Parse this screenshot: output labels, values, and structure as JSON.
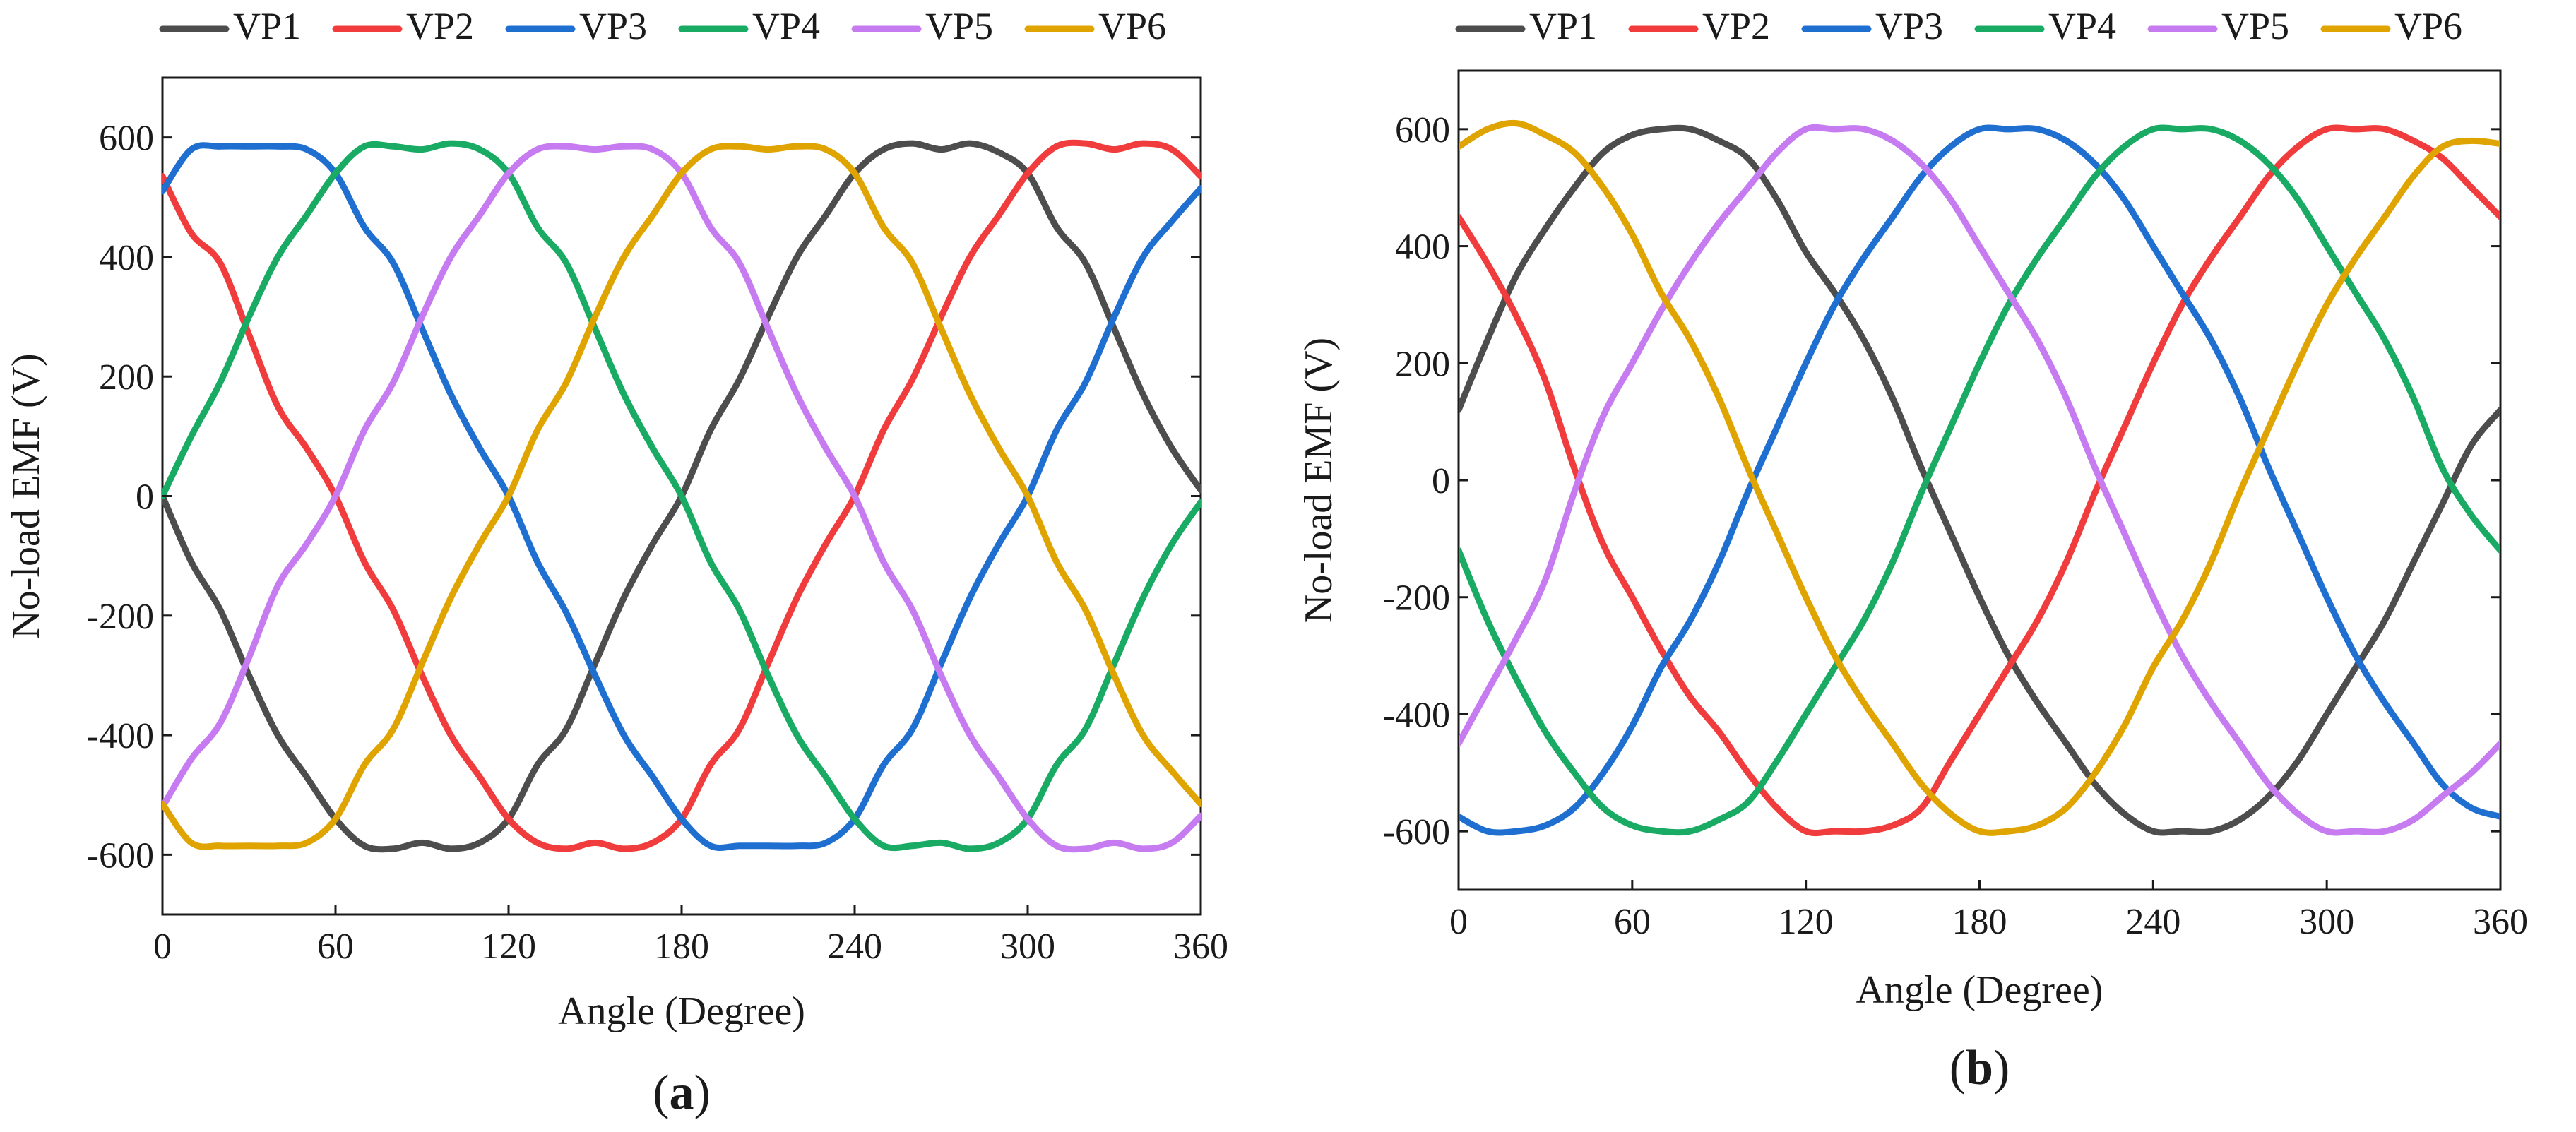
{
  "figure": {
    "label_open": "(",
    "label_close": ")"
  },
  "chart_data": [
    {
      "type": "line",
      "panel_label": "a",
      "xlabel": "Angle (Degree)",
      "ylabel": "No-load EMF (V)",
      "xlim": [
        0,
        360
      ],
      "ylim": [
        -700,
        700
      ],
      "xticks": [
        0,
        60,
        120,
        180,
        240,
        300,
        360
      ],
      "yticks": [
        -600,
        -400,
        -200,
        0,
        200,
        400,
        600
      ],
      "legend": "top",
      "grid": false,
      "series": [
        {
          "name": "VP1",
          "color": "#4d4d4d",
          "x": [
            0,
            10,
            20,
            30,
            40,
            50,
            60,
            70,
            80,
            90,
            100,
            110,
            120,
            130,
            140,
            150,
            160,
            170,
            180,
            190,
            200,
            210,
            220,
            230,
            240,
            250,
            260,
            270,
            280,
            290,
            300,
            310,
            320,
            330,
            340,
            350,
            360
          ],
          "values": [
            0,
            -110,
            -190,
            -300,
            -400,
            -470,
            -540,
            -585,
            -590,
            -580,
            -590,
            -580,
            -540,
            -450,
            -390,
            -280,
            -170,
            -80,
            0,
            110,
            195,
            300,
            400,
            470,
            540,
            580,
            590,
            580,
            590,
            575,
            540,
            450,
            390,
            280,
            170,
            80,
            10
          ]
        },
        {
          "name": "VP2",
          "color": "#f03c3c",
          "x": [
            0,
            10,
            20,
            30,
            40,
            50,
            60,
            70,
            80,
            90,
            100,
            110,
            120,
            130,
            140,
            150,
            160,
            170,
            180,
            190,
            200,
            210,
            220,
            230,
            240,
            250,
            260,
            270,
            280,
            290,
            300,
            310,
            320,
            330,
            340,
            350,
            360
          ],
          "values": [
            535,
            440,
            390,
            270,
            150,
            80,
            0,
            -110,
            -190,
            -300,
            -400,
            -470,
            -540,
            -580,
            -590,
            -580,
            -590,
            -580,
            -540,
            -450,
            -390,
            -280,
            -170,
            -80,
            0,
            110,
            195,
            300,
            400,
            470,
            540,
            585,
            590,
            580,
            590,
            580,
            535
          ]
        },
        {
          "name": "VP3",
          "color": "#1f6fd1",
          "x": [
            0,
            10,
            20,
            30,
            40,
            50,
            60,
            70,
            80,
            90,
            100,
            110,
            120,
            130,
            140,
            150,
            160,
            170,
            180,
            190,
            200,
            210,
            220,
            230,
            240,
            250,
            260,
            270,
            280,
            290,
            300,
            310,
            320,
            330,
            340,
            350,
            360
          ],
          "values": [
            510,
            580,
            585,
            585,
            585,
            580,
            540,
            450,
            390,
            280,
            170,
            80,
            0,
            -110,
            -195,
            -300,
            -400,
            -470,
            -540,
            -585,
            -585,
            -585,
            -585,
            -580,
            -540,
            -450,
            -390,
            -280,
            -170,
            -80,
            0,
            110,
            190,
            300,
            400,
            460,
            515
          ]
        },
        {
          "name": "VP4",
          "color": "#19aa64",
          "x": [
            0,
            10,
            20,
            30,
            40,
            50,
            60,
            70,
            80,
            90,
            100,
            110,
            120,
            130,
            140,
            150,
            160,
            170,
            180,
            190,
            200,
            210,
            220,
            230,
            240,
            250,
            260,
            270,
            280,
            290,
            300,
            310,
            320,
            330,
            340,
            350,
            360
          ],
          "values": [
            0,
            100,
            190,
            300,
            400,
            470,
            540,
            585,
            585,
            580,
            590,
            580,
            540,
            450,
            390,
            280,
            170,
            80,
            0,
            -110,
            -190,
            -300,
            -400,
            -470,
            -540,
            -585,
            -585,
            -580,
            -590,
            -580,
            -540,
            -450,
            -390,
            -280,
            -170,
            -80,
            -10
          ]
        },
        {
          "name": "VP5",
          "color": "#c67cf0",
          "x": [
            0,
            10,
            20,
            30,
            40,
            50,
            60,
            70,
            80,
            90,
            100,
            110,
            120,
            130,
            140,
            150,
            160,
            170,
            180,
            190,
            200,
            210,
            220,
            230,
            240,
            250,
            260,
            270,
            280,
            290,
            300,
            310,
            320,
            330,
            340,
            350,
            360
          ],
          "values": [
            -520,
            -440,
            -380,
            -270,
            -150,
            -80,
            0,
            110,
            190,
            300,
            400,
            470,
            540,
            580,
            585,
            580,
            585,
            580,
            540,
            450,
            390,
            280,
            170,
            80,
            0,
            -110,
            -190,
            -300,
            -400,
            -470,
            -540,
            -585,
            -590,
            -580,
            -590,
            -580,
            -535
          ]
        },
        {
          "name": "VP6",
          "color": "#e0a400",
          "x": [
            0,
            10,
            20,
            30,
            40,
            50,
            60,
            70,
            80,
            90,
            100,
            110,
            120,
            130,
            140,
            150,
            160,
            170,
            180,
            190,
            200,
            210,
            220,
            230,
            240,
            250,
            260,
            270,
            280,
            290,
            300,
            310,
            320,
            330,
            340,
            350,
            360
          ],
          "values": [
            -515,
            -580,
            -585,
            -585,
            -585,
            -580,
            -540,
            -450,
            -390,
            -280,
            -170,
            -80,
            0,
            110,
            190,
            300,
            400,
            470,
            540,
            580,
            585,
            580,
            585,
            580,
            540,
            450,
            390,
            280,
            170,
            80,
            0,
            -110,
            -190,
            -300,
            -400,
            -460,
            -515
          ]
        }
      ]
    },
    {
      "type": "line",
      "panel_label": "b",
      "xlabel": "Angle (Degree)",
      "ylabel": "No-load EMF (V)",
      "xlim": [
        0,
        360
      ],
      "ylim": [
        -700,
        700
      ],
      "xticks": [
        0,
        60,
        120,
        180,
        240,
        300,
        360
      ],
      "yticks": [
        -600,
        -400,
        -200,
        0,
        200,
        400,
        600
      ],
      "legend": "top",
      "grid": false,
      "series": [
        {
          "name": "VP1",
          "color": "#4d4d4d",
          "x": [
            0,
            10,
            20,
            30,
            40,
            50,
            60,
            70,
            80,
            90,
            100,
            110,
            120,
            130,
            140,
            150,
            160,
            170,
            180,
            190,
            200,
            210,
            220,
            230,
            240,
            250,
            260,
            270,
            280,
            290,
            300,
            310,
            320,
            330,
            340,
            350,
            360
          ],
          "values": [
            120,
            240,
            350,
            430,
            500,
            560,
            590,
            600,
            600,
            580,
            550,
            480,
            390,
            320,
            240,
            140,
            20,
            -90,
            -200,
            -300,
            -380,
            -450,
            -520,
            -570,
            -600,
            -600,
            -600,
            -580,
            -540,
            -480,
            -400,
            -320,
            -240,
            -140,
            -40,
            60,
            120
          ]
        },
        {
          "name": "VP2",
          "color": "#f03c3c",
          "x": [
            0,
            10,
            20,
            30,
            40,
            50,
            60,
            70,
            80,
            90,
            100,
            110,
            120,
            130,
            140,
            150,
            160,
            170,
            180,
            190,
            200,
            210,
            220,
            230,
            240,
            250,
            260,
            270,
            280,
            290,
            300,
            310,
            320,
            330,
            340,
            350,
            360
          ],
          "values": [
            450,
            370,
            280,
            170,
            20,
            -110,
            -200,
            -290,
            -370,
            -430,
            -500,
            -560,
            -600,
            -600,
            -600,
            -590,
            -560,
            -480,
            -400,
            -320,
            -240,
            -140,
            -20,
            90,
            200,
            300,
            380,
            450,
            520,
            570,
            600,
            600,
            600,
            580,
            550,
            500,
            450
          ]
        },
        {
          "name": "VP3",
          "color": "#1f6fd1",
          "x": [
            0,
            10,
            20,
            30,
            40,
            50,
            60,
            70,
            80,
            90,
            100,
            110,
            120,
            130,
            140,
            150,
            160,
            170,
            180,
            190,
            200,
            210,
            220,
            230,
            240,
            250,
            260,
            270,
            280,
            290,
            300,
            310,
            320,
            330,
            340,
            350,
            360
          ],
          "values": [
            -575,
            -600,
            -600,
            -590,
            -560,
            -500,
            -420,
            -320,
            -240,
            -140,
            -20,
            90,
            200,
            300,
            380,
            450,
            520,
            570,
            600,
            600,
            600,
            580,
            540,
            480,
            400,
            320,
            240,
            140,
            20,
            -90,
            -200,
            -300,
            -380,
            -450,
            -520,
            -560,
            -575
          ]
        },
        {
          "name": "VP4",
          "color": "#19aa64",
          "x": [
            0,
            10,
            20,
            30,
            40,
            50,
            60,
            70,
            80,
            90,
            100,
            110,
            120,
            130,
            140,
            150,
            160,
            170,
            180,
            190,
            200,
            210,
            220,
            230,
            240,
            250,
            260,
            270,
            280,
            290,
            300,
            310,
            320,
            330,
            340,
            350,
            360
          ],
          "values": [
            -120,
            -240,
            -340,
            -430,
            -500,
            -560,
            -590,
            -600,
            -600,
            -580,
            -550,
            -480,
            -400,
            -320,
            -240,
            -140,
            -20,
            90,
            200,
            300,
            380,
            450,
            520,
            570,
            600,
            600,
            600,
            580,
            540,
            480,
            400,
            320,
            240,
            140,
            20,
            -60,
            -120
          ]
        },
        {
          "name": "VP5",
          "color": "#c67cf0",
          "x": [
            0,
            10,
            20,
            30,
            40,
            50,
            60,
            70,
            80,
            90,
            100,
            110,
            120,
            130,
            140,
            150,
            160,
            170,
            180,
            190,
            200,
            210,
            220,
            230,
            240,
            250,
            260,
            270,
            280,
            290,
            300,
            310,
            320,
            330,
            340,
            350,
            360
          ],
          "values": [
            -450,
            -360,
            -270,
            -170,
            -20,
            110,
            200,
            290,
            370,
            440,
            500,
            560,
            600,
            600,
            600,
            580,
            540,
            480,
            400,
            320,
            240,
            140,
            20,
            -90,
            -200,
            -300,
            -380,
            -450,
            -520,
            -570,
            -600,
            -600,
            -600,
            -580,
            -540,
            -500,
            -450
          ]
        },
        {
          "name": "VP6",
          "color": "#e0a400",
          "x": [
            0,
            10,
            20,
            30,
            40,
            50,
            60,
            70,
            80,
            90,
            100,
            110,
            120,
            130,
            140,
            150,
            160,
            170,
            180,
            190,
            200,
            210,
            220,
            230,
            240,
            250,
            260,
            270,
            280,
            290,
            300,
            310,
            320,
            330,
            340,
            350,
            360
          ],
          "values": [
            570,
            600,
            610,
            590,
            560,
            500,
            420,
            320,
            240,
            140,
            20,
            -90,
            -200,
            -300,
            -380,
            -450,
            -520,
            -570,
            -600,
            -600,
            -590,
            -560,
            -500,
            -420,
            -320,
            -240,
            -140,
            -20,
            90,
            200,
            300,
            380,
            450,
            520,
            570,
            580,
            575
          ]
        }
      ]
    }
  ]
}
